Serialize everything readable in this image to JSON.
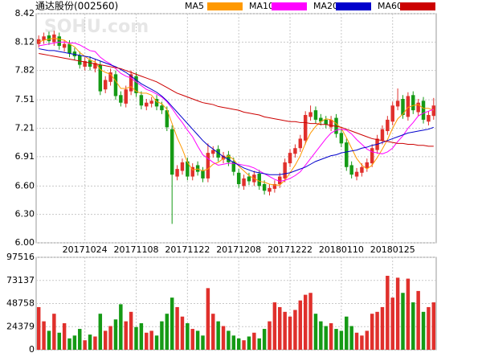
{
  "chart_data": [
    {
      "type": "candlestick",
      "title": "通达股份(002560)",
      "watermark": "SOHU.com",
      "categories": [
        null,
        null,
        null,
        null,
        null,
        null,
        null,
        null,
        null,
        "20171024",
        null,
        null,
        null,
        null,
        null,
        null,
        null,
        null,
        null,
        "20171108",
        null,
        null,
        null,
        null,
        null,
        null,
        null,
        null,
        null,
        "20171122",
        null,
        null,
        null,
        null,
        null,
        null,
        null,
        null,
        null,
        "20171208",
        null,
        null,
        null,
        null,
        null,
        null,
        null,
        null,
        null,
        "20171222",
        null,
        null,
        null,
        null,
        null,
        null,
        null,
        null,
        null,
        "20180110",
        null,
        null,
        null,
        null,
        null,
        null,
        null,
        null,
        null,
        "20180125",
        null,
        null,
        null,
        null,
        null,
        null,
        null,
        null
      ],
      "open": [
        8.1,
        8.14,
        8.19,
        8.12,
        8.18,
        8.06,
        8.1,
        8.02,
        7.98,
        7.86,
        7.93,
        7.84,
        7.88,
        7.62,
        7.7,
        7.78,
        7.56,
        7.47,
        7.6,
        7.76,
        7.56,
        7.44,
        7.47,
        7.52,
        7.45,
        7.4,
        7.2,
        6.7,
        6.76,
        6.86,
        6.7,
        6.82,
        6.76,
        6.68,
        6.94,
        6.99,
        6.88,
        6.93,
        6.86,
        6.74,
        6.6,
        6.7,
        6.64,
        6.73,
        6.62,
        6.54,
        6.57,
        6.62,
        6.68,
        6.84,
        6.94,
        7.0,
        7.08,
        7.33,
        7.4,
        7.32,
        7.3,
        7.22,
        7.32,
        7.16,
        7.06,
        6.82,
        6.7,
        6.74,
        6.79,
        6.84,
        6.98,
        7.08,
        7.18,
        7.28,
        7.44,
        7.52,
        7.33,
        7.56,
        7.38,
        7.5,
        7.28,
        7.34
      ],
      "high": [
        8.19,
        8.22,
        8.23,
        8.24,
        8.22,
        8.14,
        8.14,
        8.06,
        8.02,
        7.96,
        7.97,
        7.94,
        7.92,
        7.76,
        7.84,
        7.82,
        7.6,
        7.66,
        7.82,
        7.8,
        7.6,
        7.52,
        7.54,
        7.56,
        7.49,
        7.44,
        7.24,
        6.82,
        6.89,
        6.9,
        6.84,
        6.86,
        6.8,
        7.05,
        7.02,
        7.03,
        6.96,
        6.97,
        6.9,
        6.78,
        6.72,
        6.74,
        6.76,
        6.77,
        6.66,
        6.62,
        6.66,
        6.74,
        6.89,
        6.99,
        7.04,
        7.14,
        7.39,
        7.45,
        7.44,
        7.36,
        7.34,
        7.34,
        7.36,
        7.2,
        7.1,
        6.86,
        6.79,
        6.84,
        6.89,
        7.04,
        7.14,
        7.24,
        7.34,
        7.49,
        7.63,
        7.56,
        7.59,
        7.6,
        7.52,
        7.54,
        7.39,
        7.53
      ],
      "low": [
        8.06,
        8.1,
        8.09,
        8.08,
        8.04,
        8.02,
        7.96,
        7.93,
        7.84,
        7.82,
        7.82,
        7.8,
        7.56,
        7.58,
        7.66,
        7.51,
        7.44,
        7.43,
        7.56,
        7.54,
        7.41,
        7.4,
        7.43,
        7.4,
        7.36,
        7.18,
        6.2,
        6.66,
        6.72,
        6.66,
        6.66,
        6.71,
        6.64,
        6.64,
        6.9,
        6.86,
        6.84,
        6.81,
        6.71,
        6.58,
        6.56,
        6.61,
        6.6,
        6.56,
        6.51,
        6.5,
        6.53,
        6.58,
        6.64,
        6.8,
        6.9,
        6.96,
        7.04,
        7.29,
        7.26,
        7.24,
        7.21,
        7.18,
        7.11,
        7.01,
        6.76,
        6.68,
        6.66,
        6.7,
        6.75,
        6.8,
        6.94,
        7.04,
        7.14,
        7.24,
        7.4,
        7.31,
        7.29,
        7.36,
        7.34,
        7.26,
        7.24,
        7.3
      ],
      "close": [
        8.15,
        8.18,
        8.13,
        8.2,
        8.08,
        8.1,
        8.0,
        7.97,
        7.88,
        7.92,
        7.86,
        7.9,
        7.6,
        7.72,
        7.8,
        7.55,
        7.48,
        7.62,
        7.78,
        7.58,
        7.45,
        7.48,
        7.5,
        7.44,
        7.4,
        7.22,
        6.72,
        6.78,
        6.85,
        6.7,
        6.8,
        6.75,
        6.68,
        6.95,
        6.98,
        6.9,
        6.92,
        6.85,
        6.75,
        6.62,
        6.68,
        6.65,
        6.72,
        6.6,
        6.55,
        6.58,
        6.62,
        6.7,
        6.85,
        6.95,
        7.0,
        7.1,
        7.35,
        7.38,
        7.3,
        7.28,
        7.25,
        7.3,
        7.15,
        7.05,
        6.8,
        6.72,
        6.75,
        6.8,
        6.85,
        7.0,
        7.1,
        7.2,
        7.3,
        7.45,
        7.5,
        7.35,
        7.55,
        7.4,
        7.48,
        7.3,
        7.35,
        7.45
      ],
      "up_color": "#e0302c",
      "down_color": "#159a15",
      "series": [
        {
          "name": "MA5",
          "color": "#ff9900",
          "values": [
            8.12,
            8.14,
            8.15,
            8.16,
            8.15,
            8.14,
            8.1,
            8.07,
            8.01,
            7.97,
            7.93,
            7.91,
            7.83,
            7.8,
            7.78,
            7.71,
            7.63,
            7.63,
            7.65,
            7.6,
            7.58,
            7.58,
            7.56,
            7.49,
            7.47,
            7.41,
            7.26,
            7.11,
            6.99,
            6.85,
            6.77,
            6.78,
            6.76,
            6.78,
            6.83,
            6.85,
            6.89,
            6.92,
            6.88,
            6.81,
            6.76,
            6.71,
            6.68,
            6.65,
            6.64,
            6.62,
            6.61,
            6.61,
            6.66,
            6.74,
            6.82,
            6.92,
            7.05,
            7.16,
            7.23,
            7.28,
            7.31,
            7.3,
            7.26,
            7.21,
            7.11,
            7.0,
            6.89,
            6.82,
            6.78,
            6.82,
            6.9,
            6.99,
            7.09,
            7.21,
            7.31,
            7.36,
            7.43,
            7.45,
            7.46,
            7.42,
            7.42,
            7.4
          ]
        },
        {
          "name": "MA10",
          "color": "#ff00ff",
          "values": [
            8.08,
            8.09,
            8.1,
            8.11,
            8.12,
            8.12,
            8.11,
            8.11,
            8.09,
            8.06,
            8.03,
            8.02,
            7.96,
            7.92,
            7.89,
            7.84,
            7.79,
            7.76,
            7.74,
            7.7,
            7.66,
            7.62,
            7.6,
            7.57,
            7.54,
            7.49,
            7.42,
            7.34,
            7.27,
            7.19,
            7.12,
            7.02,
            6.93,
            6.89,
            6.85,
            6.82,
            6.83,
            6.84,
            6.84,
            6.83,
            6.82,
            6.81,
            6.79,
            6.76,
            6.73,
            6.7,
            6.67,
            6.65,
            6.66,
            6.68,
            6.71,
            6.75,
            6.82,
            6.89,
            6.96,
            7.03,
            7.1,
            7.16,
            7.19,
            7.2,
            7.19,
            7.15,
            7.09,
            7.04,
            6.99,
            6.96,
            6.95,
            6.94,
            6.96,
            7.0,
            7.07,
            7.13,
            7.21,
            7.27,
            7.34,
            7.37,
            7.39,
            7.41
          ]
        },
        {
          "name": "MA20",
          "color": "#0000cc",
          "values": [
            8.05,
            8.04,
            8.03,
            8.03,
            8.02,
            8.01,
            8.0,
            7.99,
            7.98,
            7.97,
            7.96,
            7.94,
            7.92,
            7.9,
            7.88,
            7.86,
            7.83,
            7.8,
            7.76,
            7.72,
            7.68,
            7.65,
            7.62,
            7.59,
            7.55,
            7.5,
            7.44,
            7.38,
            7.32,
            7.26,
            7.2,
            7.14,
            7.08,
            7.03,
            6.99,
            6.95,
            6.91,
            6.88,
            6.85,
            6.82,
            6.79,
            6.77,
            6.75,
            6.74,
            6.73,
            6.72,
            6.72,
            6.72,
            6.73,
            6.74,
            6.76,
            6.78,
            6.8,
            6.83,
            6.86,
            6.88,
            6.9,
            6.92,
            6.93,
            6.95,
            6.96,
            6.97,
            6.98,
            7.0,
            7.01,
            7.03,
            7.04,
            7.06,
            7.08,
            7.1,
            7.12,
            7.14,
            7.16,
            7.17,
            7.18,
            7.19,
            7.2,
            7.22
          ]
        },
        {
          "name": "MA60",
          "color": "#cc0000",
          "values": [
            8.0,
            7.99,
            7.98,
            7.97,
            7.96,
            7.95,
            7.94,
            7.93,
            7.92,
            7.91,
            7.9,
            7.89,
            7.88,
            7.87,
            7.86,
            7.85,
            7.84,
            7.82,
            7.8,
            7.78,
            7.76,
            7.74,
            7.72,
            7.7,
            7.67,
            7.64,
            7.61,
            7.58,
            7.56,
            7.54,
            7.52,
            7.5,
            7.48,
            7.47,
            7.46,
            7.44,
            7.43,
            7.42,
            7.41,
            7.4,
            7.38,
            7.37,
            7.36,
            7.35,
            7.33,
            7.32,
            7.31,
            7.3,
            7.29,
            7.28,
            7.28,
            7.27,
            7.27,
            7.26,
            7.26,
            7.25,
            7.25,
            7.24,
            7.23,
            7.22,
            7.2,
            7.18,
            7.16,
            7.14,
            7.12,
            7.1,
            7.09,
            7.08,
            7.07,
            7.06,
            7.05,
            7.05,
            7.04,
            7.04,
            7.03,
            7.03,
            7.02,
            7.02
          ]
        }
      ],
      "ylim": [
        6.0,
        8.42
      ],
      "yticks": [
        {
          "value": 6.0,
          "label": "6.00"
        },
        {
          "value": 6.3,
          "label": "6.30"
        },
        {
          "value": 6.6,
          "label": "6.60"
        },
        6.91,
        7.21,
        7.51,
        7.82,
        8.12,
        8.42
      ],
      "grid": true
    },
    {
      "type": "bar",
      "values": [
        45000,
        30000,
        20000,
        38000,
        18000,
        28000,
        12000,
        15000,
        22000,
        10000,
        16000,
        14000,
        38000,
        20000,
        25000,
        32000,
        48000,
        30000,
        40000,
        24000,
        28000,
        18000,
        20000,
        15000,
        30000,
        38000,
        55000,
        45000,
        35000,
        28000,
        22000,
        20000,
        15000,
        65000,
        38000,
        30000,
        25000,
        20000,
        15000,
        12000,
        10000,
        14000,
        18000,
        12000,
        22000,
        30000,
        50000,
        45000,
        40000,
        35000,
        42000,
        52000,
        58000,
        60000,
        38000,
        30000,
        25000,
        28000,
        22000,
        20000,
        35000,
        25000,
        18000,
        15000,
        20000,
        38000,
        40000,
        45000,
        78000,
        55000,
        76000,
        60000,
        75000,
        50000,
        62000,
        40000,
        45000,
        50000
      ],
      "ylim": [
        0,
        97516
      ],
      "yticks": [
        0,
        24379,
        48758,
        73137,
        97516
      ],
      "grid": true
    }
  ]
}
